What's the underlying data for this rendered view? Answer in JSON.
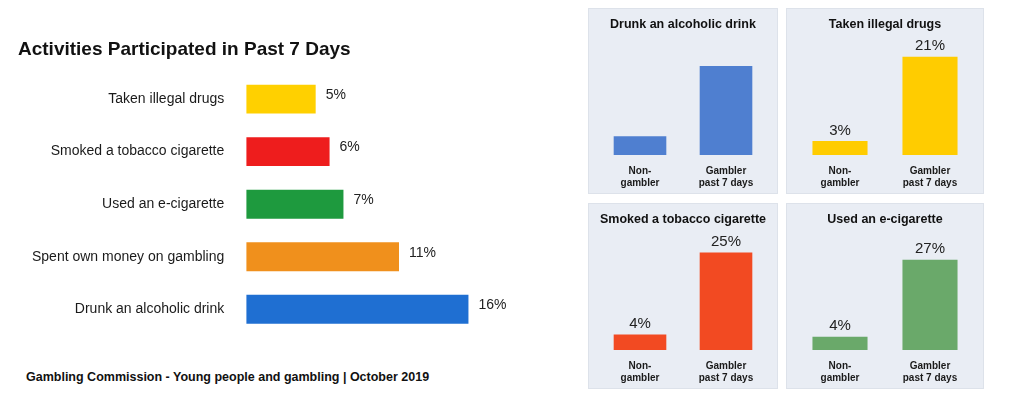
{
  "chart_data": [
    {
      "type": "bar",
      "title": "Activities Participated in Past 7 Days",
      "orientation": "horizontal",
      "categories": [
        "Taken illegal drugs",
        "Smoked a tobacco cigarette",
        "Used an e-cigarette",
        "Spent own money on gambling",
        "Drunk an alcoholic drink"
      ],
      "values": [
        5,
        6,
        7,
        11,
        16
      ],
      "value_labels": [
        "5%",
        "6%",
        "7%",
        "11%",
        "16%"
      ],
      "colors": [
        "#ffd000",
        "#ee1d1d",
        "#1e9a3e",
        "#f0901c",
        "#1f6fd2"
      ],
      "data_labels": true,
      "grid": false,
      "tick_labels": "y",
      "annotations": [
        "Gambling Commission - Young people and gambling | October 2019"
      ]
    },
    {
      "type": "bar",
      "title": "Drunk an alcoholic drink",
      "categories": [
        "Non-gambler",
        "Gambler past 7 days"
      ],
      "values": [
        8,
        38
      ],
      "color": "#4f7fd0",
      "data_labels": false,
      "grid": false,
      "tick_labels": "x"
    },
    {
      "type": "bar",
      "title": "Taken illegal drugs",
      "categories": [
        "Non-gambler",
        "Gambler past 7 days"
      ],
      "values": [
        3,
        21
      ],
      "value_labels": [
        "3%",
        "21%"
      ],
      "color": "#ffcc00",
      "data_labels": true,
      "grid": false,
      "tick_labels": "x"
    },
    {
      "type": "bar",
      "title": "Smoked a tobacco cigarette",
      "categories": [
        "Non-gambler",
        "Gambler past 7 days"
      ],
      "values": [
        4,
        25
      ],
      "value_labels": [
        "4%",
        "25%"
      ],
      "color": "#f24a22",
      "data_labels": true,
      "grid": false,
      "tick_labels": "x"
    },
    {
      "type": "bar",
      "title": "Used an e-cigarette",
      "categories": [
        "Non-gambler",
        "Gambler past 7 days"
      ],
      "values": [
        4,
        27
      ],
      "value_labels": [
        "4%",
        "27%"
      ],
      "color": "#6aa96a",
      "data_labels": true,
      "grid": false,
      "tick_labels": "x"
    }
  ]
}
